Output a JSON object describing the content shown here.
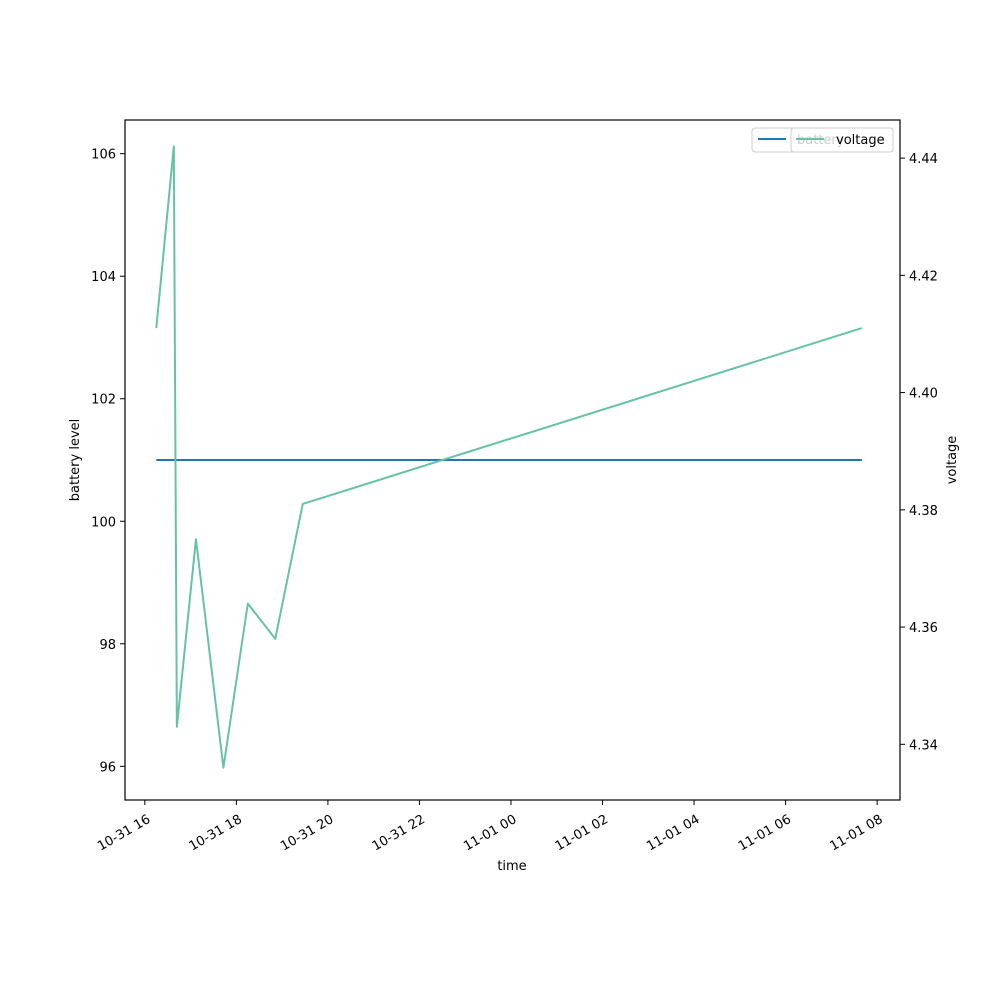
{
  "chart_data": {
    "type": "line",
    "xlabel": "time",
    "ylabel_left": "battery level",
    "ylabel_right": "voltage",
    "x_ticks": [
      "10-31 16",
      "10-31 18",
      "10-31 20",
      "10-31 22",
      "11-01 00",
      "11-01 02",
      "11-01 04",
      "11-01 06",
      "11-01 08"
    ],
    "x_tick_times": [
      "2023-10-31T16:00",
      "2023-10-31T18:00",
      "2023-10-31T20:00",
      "2023-10-31T22:00",
      "2023-11-01T00:00",
      "2023-11-01T02:00",
      "2023-11-01T04:00",
      "2023-11-01T06:00",
      "2023-11-01T08:00"
    ],
    "xlim": [
      "2023-10-31T15:34",
      "2023-11-01T08:30"
    ],
    "ylim_left": [
      95.45,
      106.55
    ],
    "yticks_left": [
      "96",
      "98",
      "100",
      "102",
      "104",
      "106"
    ],
    "ylim_right": [
      4.3305,
      4.4465
    ],
    "yticks_right": [
      "4.34",
      "4.36",
      "4.38",
      "4.40",
      "4.42",
      "4.44"
    ],
    "legend_position": "top-right",
    "series": [
      {
        "name": "battery",
        "axis": "left",
        "color": "#1f77b4",
        "points": [
          {
            "t": "2023-10-31T16:15",
            "y": 101
          },
          {
            "t": "2023-11-01T07:40",
            "y": 101
          }
        ]
      },
      {
        "name": "voltage",
        "axis": "right",
        "color": "#66c2a5",
        "points": [
          {
            "t": "2023-10-31T16:15",
            "y": 4.411
          },
          {
            "t": "2023-10-31T16:38",
            "y": 4.442
          },
          {
            "t": "2023-10-31T16:42",
            "y": 4.343
          },
          {
            "t": "2023-10-31T17:07",
            "y": 4.375
          },
          {
            "t": "2023-10-31T17:43",
            "y": 4.336
          },
          {
            "t": "2023-10-31T18:15",
            "y": 4.364
          },
          {
            "t": "2023-10-31T18:51",
            "y": 4.358
          },
          {
            "t": "2023-10-31T19:27",
            "y": 4.381
          },
          {
            "t": "2023-11-01T07:40",
            "y": 4.411
          }
        ]
      }
    ]
  }
}
